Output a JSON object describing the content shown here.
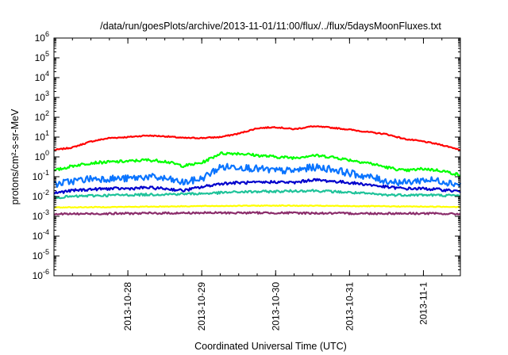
{
  "chart_data": {
    "type": "line",
    "title": "/data/run/goesPlots/archive/2013-11-01/11:00/flux/../flux/5daysMoonFluxes.txt",
    "xlabel": "Coordinated Universal Time (UTC)",
    "ylabel": "protons/cm²-s-sr-MeV",
    "y_scale": "log",
    "ylim": [
      -6,
      6
    ],
    "y_ticks": [
      {
        "exp": -6,
        "base": "10",
        "sup": "-6"
      },
      {
        "exp": -5,
        "base": "10",
        "sup": "-5"
      },
      {
        "exp": -4,
        "base": "10",
        "sup": "-4"
      },
      {
        "exp": -3,
        "base": "10",
        "sup": "-3"
      },
      {
        "exp": -2,
        "base": "10",
        "sup": "-2"
      },
      {
        "exp": -1,
        "base": "10",
        "sup": "-1"
      },
      {
        "exp": 0,
        "base": "10",
        "sup": "0"
      },
      {
        "exp": 1,
        "base": "10",
        "sup": "1"
      },
      {
        "exp": 2,
        "base": "10",
        "sup": "2"
      },
      {
        "exp": 3,
        "base": "10",
        "sup": "3"
      },
      {
        "exp": 4,
        "base": "10",
        "sup": "4"
      },
      {
        "exp": 5,
        "base": "10",
        "sup": "5"
      },
      {
        "exp": 6,
        "base": "10",
        "sup": "6"
      }
    ],
    "xlim": [
      "2013-10-27T00:00",
      "2013-11-01T12:00"
    ],
    "x_ticks": [
      {
        "t": "2013-10-28T00:00",
        "label": "2013-10-28"
      },
      {
        "t": "2013-10-29T00:00",
        "label": "2013-10-29"
      },
      {
        "t": "2013-10-30T00:00",
        "label": "2013-10-30"
      },
      {
        "t": "2013-10-31T00:00",
        "label": "2013-10-31"
      },
      {
        "t": "2013-11-01T00:00",
        "label": "2013-11-1"
      }
    ],
    "grid": false,
    "legend": "none",
    "series": [
      {
        "color": "#ff0000",
        "noise": 0.03,
        "points": [
          [
            "2013-10-27T00:00",
            2.2
          ],
          [
            "2013-10-27T06:00",
            3.0
          ],
          [
            "2013-10-27T12:00",
            6
          ],
          [
            "2013-10-27T18:00",
            9
          ],
          [
            "2013-10-28T00:00",
            10
          ],
          [
            "2013-10-28T06:00",
            12
          ],
          [
            "2013-10-28T12:00",
            11
          ],
          [
            "2013-10-28T18:00",
            9
          ],
          [
            "2013-10-29T00:00",
            9
          ],
          [
            "2013-10-29T06:00",
            10
          ],
          [
            "2013-10-29T12:00",
            15
          ],
          [
            "2013-10-29T18:00",
            28
          ],
          [
            "2013-10-30T00:00",
            32
          ],
          [
            "2013-10-30T06:00",
            25
          ],
          [
            "2013-10-30T12:00",
            35
          ],
          [
            "2013-10-30T18:00",
            30
          ],
          [
            "2013-10-31T00:00",
            24
          ],
          [
            "2013-10-31T06:00",
            18
          ],
          [
            "2013-10-31T12:00",
            14
          ],
          [
            "2013-10-31T18:00",
            8
          ],
          [
            "2013-11-01T00:00",
            6
          ],
          [
            "2013-11-01T06:00",
            4
          ],
          [
            "2013-11-01T12:00",
            2.3
          ]
        ]
      },
      {
        "color": "#00ff00",
        "noise": 0.07,
        "points": [
          [
            "2013-10-27T00:00",
            0.2
          ],
          [
            "2013-10-27T06:00",
            0.35
          ],
          [
            "2013-10-27T12:00",
            0.5
          ],
          [
            "2013-10-27T18:00",
            0.55
          ],
          [
            "2013-10-28T00:00",
            0.6
          ],
          [
            "2013-10-28T06:00",
            0.7
          ],
          [
            "2013-10-28T12:00",
            0.6
          ],
          [
            "2013-10-28T18:00",
            0.35
          ],
          [
            "2013-10-29T00:00",
            0.5
          ],
          [
            "2013-10-29T06:00",
            1.5
          ],
          [
            "2013-10-29T12:00",
            1.5
          ],
          [
            "2013-10-29T18:00",
            1.2
          ],
          [
            "2013-10-30T00:00",
            1.0
          ],
          [
            "2013-10-30T06:00",
            0.9
          ],
          [
            "2013-10-30T12:00",
            1.2
          ],
          [
            "2013-10-30T18:00",
            1.0
          ],
          [
            "2013-10-31T00:00",
            0.7
          ],
          [
            "2013-10-31T06:00",
            0.5
          ],
          [
            "2013-10-31T12:00",
            0.3
          ],
          [
            "2013-10-31T18:00",
            0.2
          ],
          [
            "2013-11-01T00:00",
            0.25
          ],
          [
            "2013-11-01T06:00",
            0.2
          ],
          [
            "2013-11-01T12:00",
            0.12
          ]
        ]
      },
      {
        "color": "#0a74ff",
        "noise": 0.18,
        "points": [
          [
            "2013-10-27T00:00",
            0.04
          ],
          [
            "2013-10-27T06:00",
            0.06
          ],
          [
            "2013-10-27T12:00",
            0.08
          ],
          [
            "2013-10-27T18:00",
            0.08
          ],
          [
            "2013-10-28T00:00",
            0.08
          ],
          [
            "2013-10-28T06:00",
            0.1
          ],
          [
            "2013-10-28T12:00",
            0.08
          ],
          [
            "2013-10-28T18:00",
            0.05
          ],
          [
            "2013-10-29T00:00",
            0.08
          ],
          [
            "2013-10-29T06:00",
            0.3
          ],
          [
            "2013-10-29T12:00",
            0.32
          ],
          [
            "2013-10-29T18:00",
            0.25
          ],
          [
            "2013-10-30T00:00",
            0.2
          ],
          [
            "2013-10-30T06:00",
            0.2
          ],
          [
            "2013-10-30T12:00",
            0.3
          ],
          [
            "2013-10-30T18:00",
            0.25
          ],
          [
            "2013-10-31T00:00",
            0.15
          ],
          [
            "2013-10-31T06:00",
            0.1
          ],
          [
            "2013-10-31T12:00",
            0.06
          ],
          [
            "2013-10-31T18:00",
            0.05
          ],
          [
            "2013-11-01T00:00",
            0.07
          ],
          [
            "2013-11-01T06:00",
            0.06
          ],
          [
            "2013-11-01T12:00",
            0.04
          ]
        ]
      },
      {
        "color": "#0000cc",
        "noise": 0.07,
        "points": [
          [
            "2013-10-27T00:00",
            0.015
          ],
          [
            "2013-10-27T06:00",
            0.02
          ],
          [
            "2013-10-27T12:00",
            0.023
          ],
          [
            "2013-10-27T18:00",
            0.025
          ],
          [
            "2013-10-28T00:00",
            0.025
          ],
          [
            "2013-10-28T06:00",
            0.028
          ],
          [
            "2013-10-28T12:00",
            0.025
          ],
          [
            "2013-10-28T18:00",
            0.02
          ],
          [
            "2013-10-29T00:00",
            0.03
          ],
          [
            "2013-10-29T06:00",
            0.045
          ],
          [
            "2013-10-29T12:00",
            0.05
          ],
          [
            "2013-10-29T18:00",
            0.05
          ],
          [
            "2013-10-30T00:00",
            0.055
          ],
          [
            "2013-10-30T06:00",
            0.05
          ],
          [
            "2013-10-30T12:00",
            0.07
          ],
          [
            "2013-10-30T18:00",
            0.06
          ],
          [
            "2013-10-31T00:00",
            0.05
          ],
          [
            "2013-10-31T06:00",
            0.04
          ],
          [
            "2013-10-31T12:00",
            0.03
          ],
          [
            "2013-10-31T18:00",
            0.025
          ],
          [
            "2013-11-01T00:00",
            0.025
          ],
          [
            "2013-11-01T06:00",
            0.022
          ],
          [
            "2013-11-01T12:00",
            0.018
          ]
        ]
      },
      {
        "color": "#1fc39a",
        "noise": 0.06,
        "points": [
          [
            "2013-10-27T00:00",
            0.009
          ],
          [
            "2013-10-27T12:00",
            0.011
          ],
          [
            "2013-10-28T00:00",
            0.012
          ],
          [
            "2013-10-28T12:00",
            0.013
          ],
          [
            "2013-10-29T00:00",
            0.014
          ],
          [
            "2013-10-29T12:00",
            0.017
          ],
          [
            "2013-10-30T00:00",
            0.018
          ],
          [
            "2013-10-30T12:00",
            0.02
          ],
          [
            "2013-10-31T00:00",
            0.016
          ],
          [
            "2013-10-31T12:00",
            0.012
          ],
          [
            "2013-11-01T00:00",
            0.012
          ],
          [
            "2013-11-01T12:00",
            0.011
          ]
        ]
      },
      {
        "color": "#ffff00",
        "noise": 0.02,
        "points": [
          [
            "2013-10-27T00:00",
            0.0028
          ],
          [
            "2013-10-28T00:00",
            0.003
          ],
          [
            "2013-10-29T00:00",
            0.0033
          ],
          [
            "2013-10-30T00:00",
            0.0035
          ],
          [
            "2013-10-31T00:00",
            0.0033
          ],
          [
            "2013-11-01T00:00",
            0.0031
          ],
          [
            "2013-11-01T12:00",
            0.003
          ]
        ]
      },
      {
        "color": "#8b2d6b",
        "noise": 0.05,
        "points": [
          [
            "2013-10-27T00:00",
            0.0013
          ],
          [
            "2013-10-28T00:00",
            0.0014
          ],
          [
            "2013-10-29T00:00",
            0.0015
          ],
          [
            "2013-10-30T00:00",
            0.0015
          ],
          [
            "2013-10-31T00:00",
            0.0014
          ],
          [
            "2013-11-01T00:00",
            0.0014
          ],
          [
            "2013-11-01T12:00",
            0.0013
          ]
        ]
      }
    ]
  }
}
